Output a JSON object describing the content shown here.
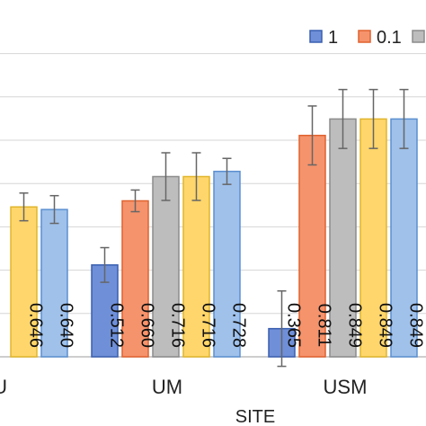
{
  "chart_data": {
    "type": "bar",
    "xlabel": "SITE",
    "ylabel": "",
    "categories": [
      "U",
      "UM",
      "USM"
    ],
    "ylim": [
      0.3,
      1.0
    ],
    "grid": true,
    "legend": "top-right",
    "series": [
      {
        "name": "1",
        "values": [
          null,
          0.512,
          0.365
        ],
        "errors": [
          null,
          0.04,
          0.087
        ],
        "color": "#6f8fd8",
        "edge": "#3a5fb0",
        "labels": [
          null,
          "0.512",
          "0.365"
        ]
      },
      {
        "name": "0.1",
        "values": [
          null,
          0.66,
          0.811
        ],
        "errors": [
          null,
          0.025,
          0.068
        ],
        "color": "#f5936c",
        "edge": "#e0622f",
        "labels": [
          null,
          "0.660",
          "0.811"
        ]
      },
      {
        "name": "",
        "values": [
          null,
          0.716,
          0.849
        ],
        "errors": [
          null,
          0.055,
          0.068
        ],
        "color": "#bdbdbd",
        "edge": "#8c8c8c",
        "labels": [
          null,
          "0.716",
          "0.849"
        ]
      },
      {
        "name": "",
        "values": [
          0.646,
          0.716,
          0.849
        ],
        "errors": [
          0.032,
          0.055,
          0.068
        ],
        "color": "#ffd66b",
        "edge": "#e0b52c",
        "labels": [
          "0.646",
          "0.716",
          "0.849"
        ]
      },
      {
        "name": "",
        "values": [
          0.64,
          0.728,
          0.849
        ],
        "errors": [
          0.032,
          0.03,
          0.068
        ],
        "color": "#9fc1ea",
        "edge": "#5b8fd0",
        "labels": [
          "0.640",
          "0.728",
          "0.849"
        ]
      }
    ]
  }
}
